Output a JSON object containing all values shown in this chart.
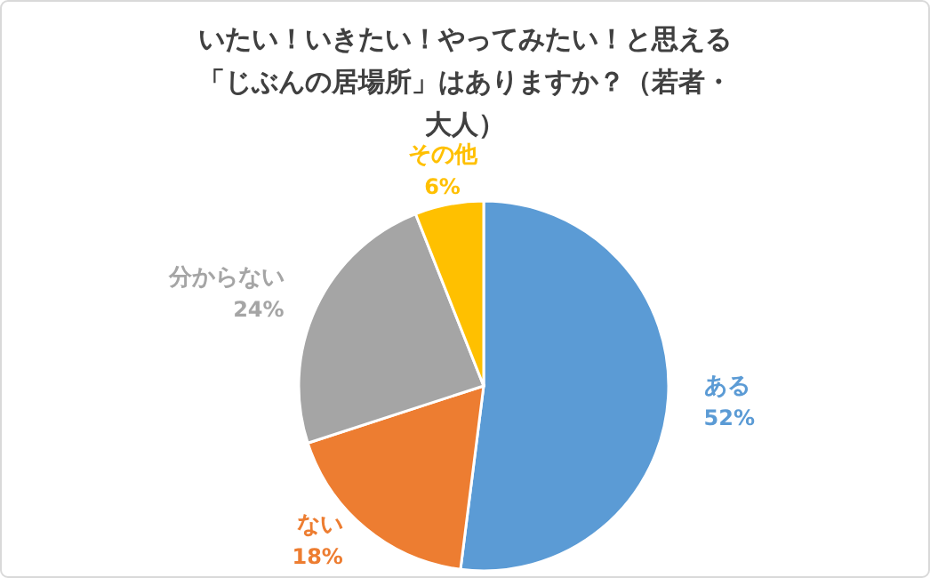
{
  "chart_data": {
    "type": "pie",
    "title": "いたい！いきたい！やってみたい！と思える「じぶんの居場所」はありますか？（若者・大人）",
    "categories": [
      "ある",
      "ない",
      "分からない",
      "その他"
    ],
    "values": [
      52,
      18,
      24,
      6
    ],
    "colors": [
      "#5b9bd5",
      "#ed7d31",
      "#a5a5a5",
      "#ffc000"
    ],
    "value_labels": [
      "52%",
      "18%",
      "24%",
      "6%"
    ]
  }
}
